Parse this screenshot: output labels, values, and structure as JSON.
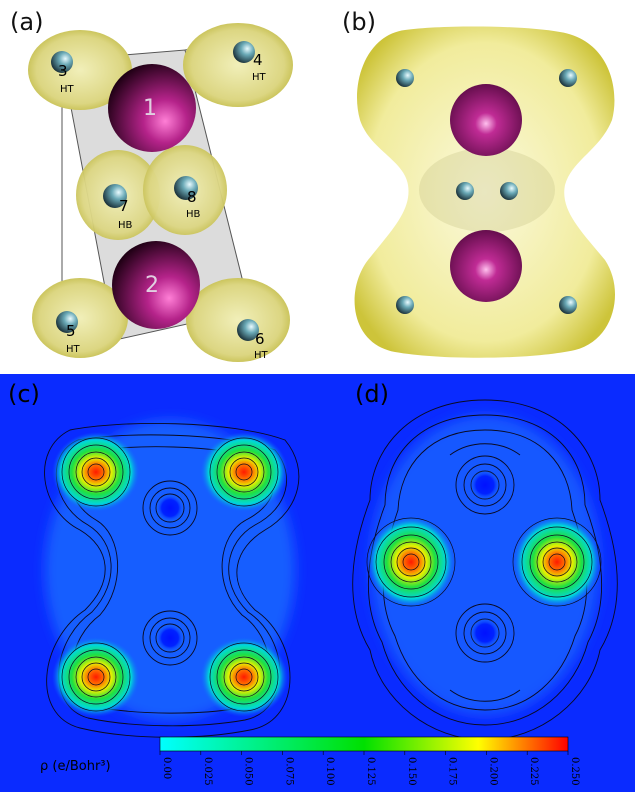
{
  "panels": {
    "a": {
      "label": "(a)"
    },
    "b": {
      "label": "(b)"
    },
    "c": {
      "label": "(c)"
    },
    "d": {
      "label": "(d)"
    }
  },
  "atoms": {
    "metal1": "1",
    "metal2": "2",
    "h3": {
      "num": "3",
      "type": "HT"
    },
    "h4": {
      "num": "4",
      "type": "HT"
    },
    "h5": {
      "num": "5",
      "type": "HT"
    },
    "h6": {
      "num": "6",
      "type": "HT"
    },
    "h7": {
      "num": "7",
      "type": "HB"
    },
    "h8": {
      "num": "8",
      "type": "HB"
    }
  },
  "colorbar": {
    "label": "ρ (e/Bohr³)",
    "ticks": [
      "0.00",
      "0.025",
      "0.050",
      "0.075",
      "0.100",
      "0.125",
      "0.150",
      "0.175",
      "0.200",
      "0.225",
      "0.250"
    ],
    "colors": [
      "#00ffff",
      "#00ff00",
      "#ffff00",
      "#ff0000"
    ]
  },
  "colors": {
    "metal": "#8a1a6a",
    "hydrogen": "#9fd6e0",
    "isosurface": "#e8e47a",
    "contour_bg": "#0a2bff"
  }
}
